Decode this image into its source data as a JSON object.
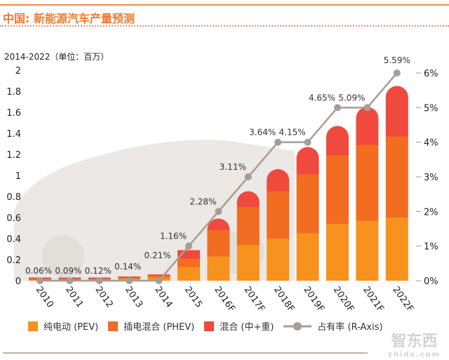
{
  "title": "中国: 新能源汽车产量预测",
  "unit_label": "2014-2022（单位：百万）",
  "watermark": {
    "cn": "智东西",
    "url": "zhidx.com"
  },
  "colors": {
    "pev": "#f7921e",
    "phev": "#f26c21",
    "hybrid": "#ef4a3d",
    "line": "#a89d94",
    "title": "#f07a30"
  },
  "chart_data": {
    "type": "bar",
    "stacked": true,
    "categories": [
      "2010",
      "2011",
      "2012",
      "2013",
      "2014",
      "2015",
      "2016F",
      "2017F",
      "2018F",
      "2019F",
      "2020F",
      "2021F",
      "2022F"
    ],
    "series": [
      {
        "name": "纯电动 (PEV)",
        "values": [
          0.01,
          0.01,
          0.01,
          0.02,
          0.03,
          0.13,
          0.23,
          0.34,
          0.4,
          0.45,
          0.54,
          0.57,
          0.6
        ]
      },
      {
        "name": "插电混合 (PHEV)",
        "values": [
          0.01,
          0.01,
          0.01,
          0.01,
          0.02,
          0.08,
          0.25,
          0.36,
          0.45,
          0.56,
          0.65,
          0.72,
          0.77
        ]
      },
      {
        "name": "混合 (中+重)",
        "values": [
          0.01,
          0.01,
          0.01,
          0.01,
          0.01,
          0.08,
          0.11,
          0.15,
          0.21,
          0.26,
          0.28,
          0.36,
          0.48
        ]
      }
    ],
    "line": {
      "name": "占有率 (R-Axis)",
      "values": [
        0,
        0,
        0,
        0,
        0,
        1,
        2,
        3,
        4,
        4,
        5,
        5,
        6
      ],
      "labels": [
        "0.06%",
        "0.09%",
        "0.12%",
        "0.14%",
        "0.21%",
        "1.16%",
        "2.28%",
        "3.11%",
        "3.64%",
        "4.15%",
        "4.65%",
        "5.09%",
        "5.59%"
      ]
    },
    "ylim": [
      0,
      2
    ],
    "yticks": [
      "0",
      "0.2",
      "0.4",
      "0.6",
      "0.8",
      "1",
      "1.2",
      "1.4",
      "1.6",
      "1.8",
      "2"
    ],
    "y2lim": [
      0,
      6
    ],
    "y2ticks": [
      "0%",
      "1%",
      "2%",
      "3%",
      "4%",
      "5%",
      "6%"
    ],
    "legend_position": "bottom",
    "grid": false
  }
}
